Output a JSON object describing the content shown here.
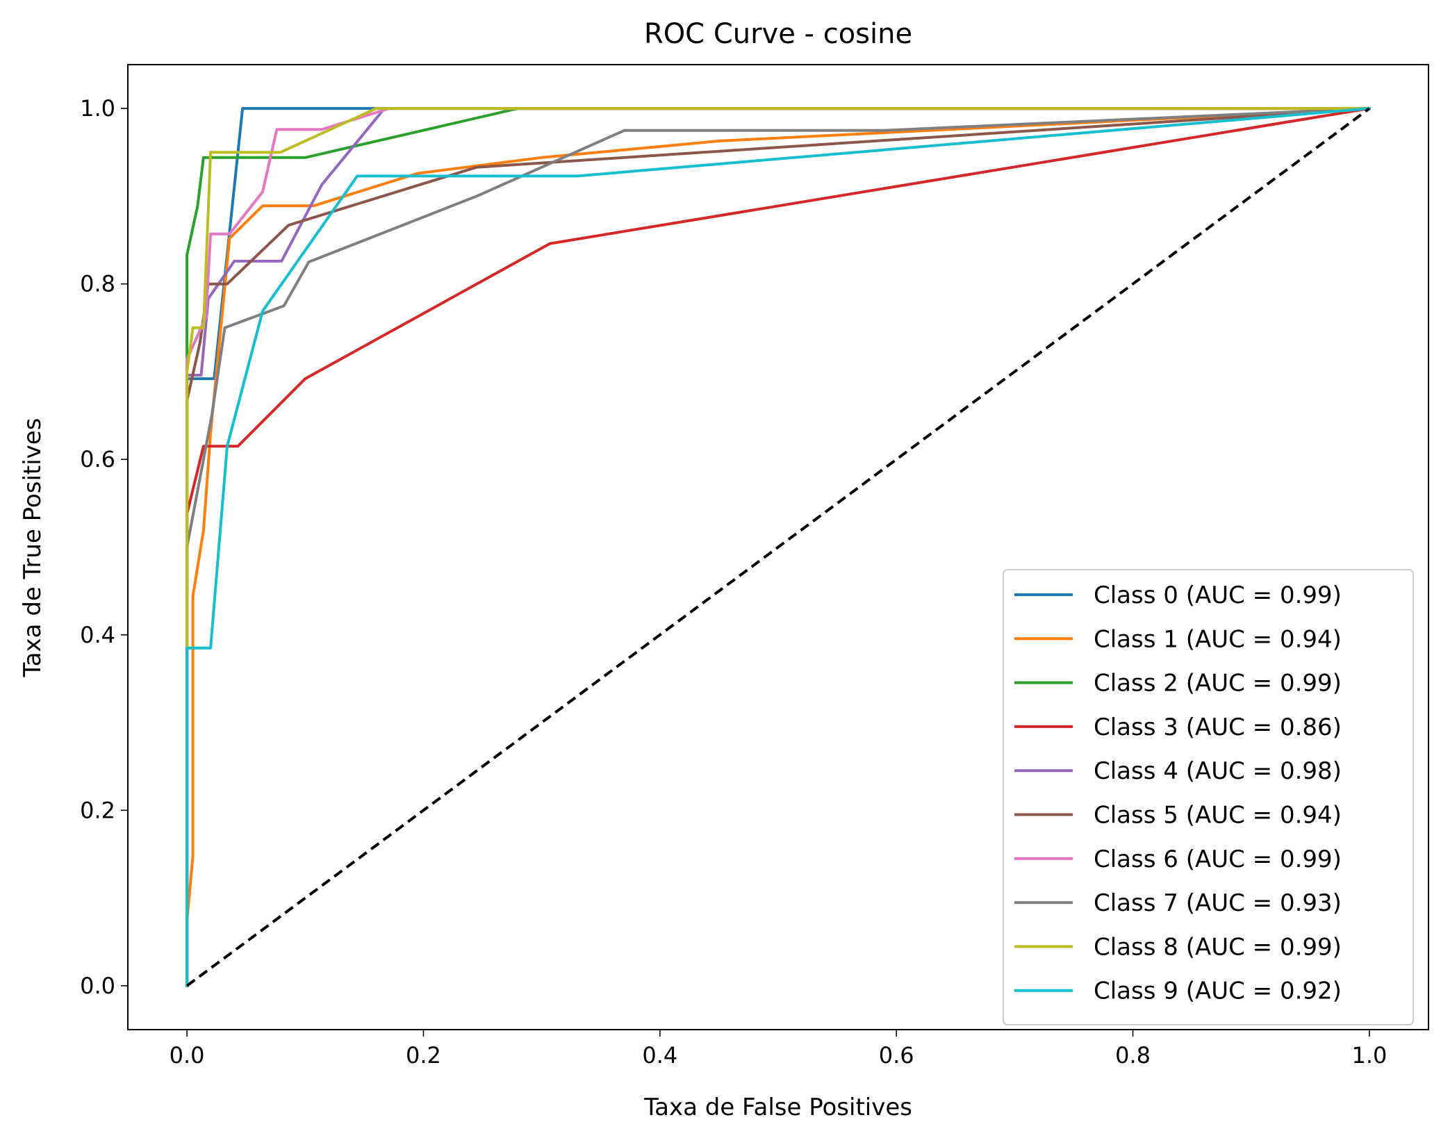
{
  "chart_data": {
    "type": "line",
    "title": "ROC Curve - cosine",
    "xlabel": "Taxa de False Positives",
    "ylabel": "Taxa de True Positives",
    "xlim": [
      -0.05,
      1.05
    ],
    "ylim": [
      -0.05,
      1.05
    ],
    "xticks": [
      0.0,
      0.2,
      0.4,
      0.6,
      0.8,
      1.0
    ],
    "yticks": [
      0.0,
      0.2,
      0.4,
      0.6,
      0.8,
      1.0
    ],
    "tick_labels_x": [
      "0.0",
      "0.2",
      "0.4",
      "0.6",
      "0.8",
      "1.0"
    ],
    "tick_labels_y": [
      "0.0",
      "0.2",
      "0.4",
      "0.6",
      "0.8",
      "1.0"
    ],
    "grid": false,
    "legend_position": "lower right",
    "series": [
      {
        "name": "Class 0 (AUC = 0.99)",
        "color": "#1f77b4",
        "points": [
          [
            0,
            0
          ],
          [
            0,
            0.077
          ],
          [
            0,
            0.692
          ],
          [
            0.023,
            0.692
          ],
          [
            0.047,
            1.0
          ],
          [
            1.0,
            1.0
          ]
        ]
      },
      {
        "name": "Class 1 (AUC = 0.94)",
        "color": "#ff7f0e",
        "points": [
          [
            0,
            0
          ],
          [
            0,
            0.074
          ],
          [
            0.005,
            0.148
          ],
          [
            0.005,
            0.444
          ],
          [
            0.014,
            0.519
          ],
          [
            0.02,
            0.63
          ],
          [
            0.028,
            0.741
          ],
          [
            0.036,
            0.852
          ],
          [
            0.064,
            0.889
          ],
          [
            0.107,
            0.889
          ],
          [
            0.195,
            0.926
          ],
          [
            0.3,
            0.944
          ],
          [
            0.45,
            0.963
          ],
          [
            1.0,
            1.0
          ]
        ]
      },
      {
        "name": "Class 2 (AUC = 0.99)",
        "color": "#2ca02c",
        "points": [
          [
            0,
            0
          ],
          [
            0,
            0.833
          ],
          [
            0.009,
            0.889
          ],
          [
            0.014,
            0.944
          ],
          [
            0.1,
            0.944
          ],
          [
            0.28,
            1.0
          ],
          [
            1.0,
            1.0
          ]
        ]
      },
      {
        "name": "Class 3 (AUC = 0.86)",
        "color": "#d62728",
        "points": [
          [
            0,
            0
          ],
          [
            0,
            0.538
          ],
          [
            0.014,
            0.615
          ],
          [
            0.043,
            0.615
          ],
          [
            0.1,
            0.692
          ],
          [
            0.307,
            0.846
          ],
          [
            1.0,
            1.0
          ]
        ]
      },
      {
        "name": "Class 4 (AUC = 0.98)",
        "color": "#9467bd",
        "points": [
          [
            0,
            0
          ],
          [
            0,
            0.696
          ],
          [
            0.012,
            0.696
          ],
          [
            0.018,
            0.783
          ],
          [
            0.04,
            0.826
          ],
          [
            0.08,
            0.826
          ],
          [
            0.114,
            0.913
          ],
          [
            0.167,
            1.0
          ],
          [
            1.0,
            1.0
          ]
        ]
      },
      {
        "name": "Class 5 (AUC = 0.94)",
        "color": "#8c564b",
        "points": [
          [
            0,
            0
          ],
          [
            0,
            0.667
          ],
          [
            0.011,
            0.733
          ],
          [
            0.018,
            0.8
          ],
          [
            0.034,
            0.8
          ],
          [
            0.086,
            0.867
          ],
          [
            0.245,
            0.933
          ],
          [
            1.0,
            1.0
          ]
        ]
      },
      {
        "name": "Class 6 (AUC = 0.99)",
        "color": "#e377c2",
        "points": [
          [
            0,
            0
          ],
          [
            0,
            0.714
          ],
          [
            0.016,
            0.762
          ],
          [
            0.02,
            0.857
          ],
          [
            0.036,
            0.857
          ],
          [
            0.064,
            0.905
          ],
          [
            0.076,
            0.976
          ],
          [
            0.114,
            0.976
          ],
          [
            0.171,
            1.0
          ],
          [
            1.0,
            1.0
          ]
        ]
      },
      {
        "name": "Class 7 (AUC = 0.93)",
        "color": "#7f7f7f",
        "points": [
          [
            0,
            0
          ],
          [
            0,
            0.5
          ],
          [
            0.021,
            0.65
          ],
          [
            0.032,
            0.75
          ],
          [
            0.082,
            0.775
          ],
          [
            0.103,
            0.825
          ],
          [
            0.245,
            0.9
          ],
          [
            0.37,
            0.975
          ],
          [
            0.59,
            0.975
          ],
          [
            1.0,
            1.0
          ]
        ]
      },
      {
        "name": "Class 8 (AUC = 0.99)",
        "color": "#bcbd22",
        "points": [
          [
            0,
            0
          ],
          [
            0,
            0.4
          ],
          [
            0,
            0.7
          ],
          [
            0.005,
            0.75
          ],
          [
            0.014,
            0.75
          ],
          [
            0.02,
            0.95
          ],
          [
            0.079,
            0.95
          ],
          [
            0.16,
            1.0
          ],
          [
            1.0,
            1.0
          ]
        ]
      },
      {
        "name": "Class 9 (AUC = 0.92)",
        "color": "#17becf",
        "points": [
          [
            0,
            0
          ],
          [
            0,
            0.385
          ],
          [
            0.02,
            0.385
          ],
          [
            0.034,
            0.615
          ],
          [
            0.064,
            0.769
          ],
          [
            0.144,
            0.923
          ],
          [
            0.33,
            0.923
          ],
          [
            1.0,
            1.0
          ]
        ]
      }
    ],
    "diagonal": {
      "color": "#000000",
      "style": "dashed",
      "points": [
        [
          0,
          0
        ],
        [
          1,
          1
        ]
      ]
    }
  }
}
